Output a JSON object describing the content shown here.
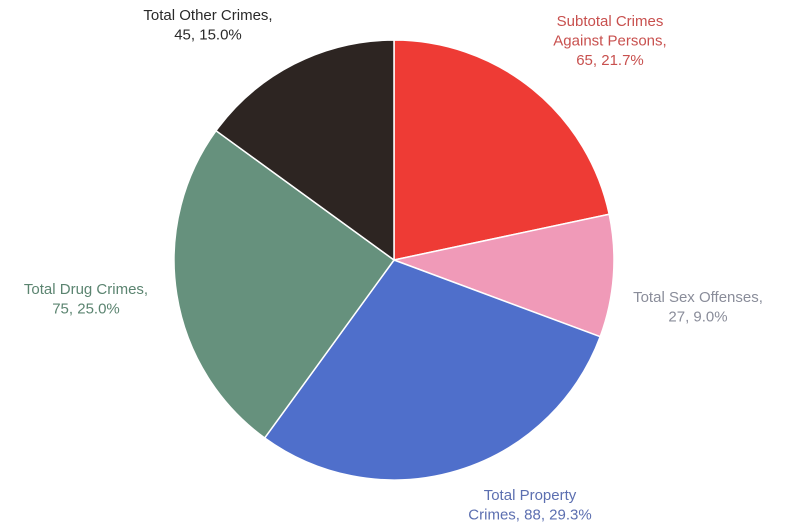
{
  "chart_data": {
    "type": "pie",
    "title": "",
    "start_angle_deg": 0,
    "direction": "clockwise",
    "slices": [
      {
        "label_lines": [
          "Subtotal Crimes",
          "Against Persons,",
          "65, 21.7%"
        ],
        "category": "Subtotal Crimes Against Persons",
        "value": 65,
        "percent": 21.7,
        "color": "#ee3b35",
        "label_color": "#c8504e"
      },
      {
        "label_lines": [
          "Total Sex Offenses,",
          "27, 9.0%"
        ],
        "category": "Total Sex Offenses",
        "value": 27,
        "percent": 9.0,
        "color": "#f09ab8",
        "label_color": "#8a8d9a"
      },
      {
        "label_lines": [
          "Total Property",
          "Crimes, 88, 29.3%"
        ],
        "category": "Total Property Crimes",
        "value": 88,
        "percent": 29.3,
        "color": "#4f6fcb",
        "label_color": "#5c6fb0"
      },
      {
        "label_lines": [
          "Total Drug Crimes,",
          "75, 25.0%"
        ],
        "category": "Total Drug Crimes",
        "value": 75,
        "percent": 25.0,
        "color": "#66917d",
        "label_color": "#5b8470"
      },
      {
        "label_lines": [
          "Total Other Crimes,",
          "45, 15.0%"
        ],
        "category": "Total Other Crimes",
        "value": 45,
        "percent": 15.0,
        "color": "#2d2522",
        "label_color": "#2a2a2a"
      }
    ]
  }
}
